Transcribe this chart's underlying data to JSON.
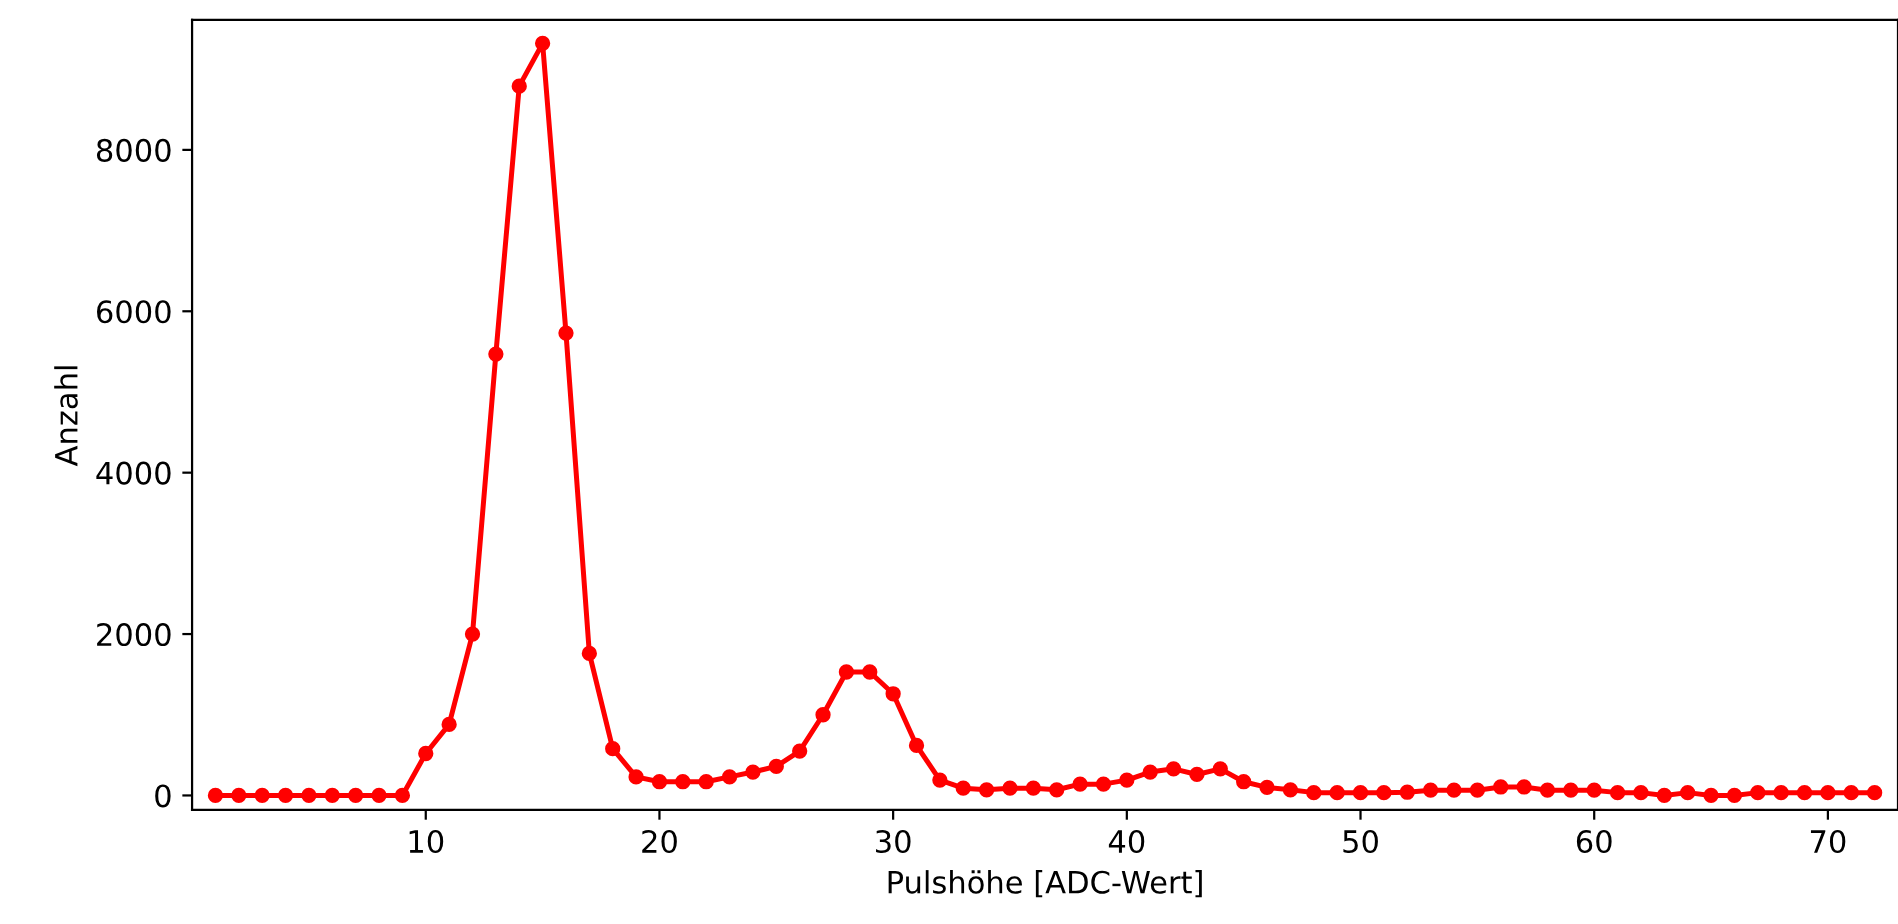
{
  "chart_data": {
    "type": "line",
    "xlabel": "Pulshöhe [ADC-Wert]",
    "ylabel": "Anzahl",
    "x": [
      1,
      2,
      3,
      4,
      5,
      6,
      7,
      8,
      9,
      10,
      11,
      12,
      13,
      14,
      15,
      16,
      17,
      18,
      19,
      20,
      21,
      22,
      23,
      24,
      25,
      26,
      27,
      28,
      29,
      30,
      31,
      32,
      33,
      34,
      35,
      36,
      37,
      38,
      39,
      40,
      41,
      42,
      43,
      44,
      45,
      46,
      47,
      48,
      49,
      50,
      51,
      52,
      53,
      54,
      55,
      56,
      57,
      58,
      59,
      60,
      61,
      62,
      63,
      64,
      65,
      66,
      67,
      68,
      69,
      70,
      71,
      72
    ],
    "series": [
      {
        "color": "#ff0000",
        "values": [
          0,
          0,
          0,
          0,
          0,
          0,
          0,
          0,
          0,
          520,
          880,
          2000,
          5470,
          8790,
          9320,
          5730,
          1760,
          580,
          230,
          170,
          170,
          170,
          230,
          290,
          360,
          550,
          1000,
          1530,
          1530,
          1260,
          620,
          190,
          90,
          70,
          90,
          90,
          70,
          140,
          140,
          190,
          290,
          330,
          260,
          330,
          170,
          100,
          70,
          35,
          35,
          35,
          35,
          40,
          65,
          65,
          65,
          105,
          105,
          65,
          65,
          65,
          35,
          35,
          0,
          35,
          0,
          0,
          35,
          35,
          35,
          35,
          35,
          35
        ]
      }
    ],
    "xlim": [
      0,
      73
    ],
    "ylim": [
      -180,
      9610
    ],
    "xticks": [
      10,
      20,
      30,
      40,
      50,
      60,
      70
    ],
    "yticks": [
      0,
      2000,
      4000,
      6000,
      8000
    ],
    "grid": false,
    "legend": false,
    "marker": "circle",
    "line_style": "solid"
  }
}
